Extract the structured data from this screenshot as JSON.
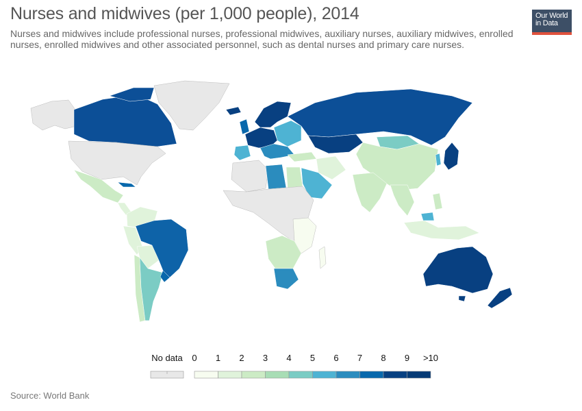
{
  "title": "Nurses and midwives (per 1,000 people), 2014",
  "subtitle": "Nurses and midwives include professional nurses, professional midwives, auxiliary nurses, auxiliary midwives, enrolled nurses, enrolled midwives and other associated personnel, such as dental nurses and primary care nurses.",
  "logo": {
    "line1": "Our World",
    "line2": "in Data"
  },
  "source": "Source: World Bank",
  "legend": {
    "no_data_label": "No data",
    "no_data_color": "#e8e8e8",
    "ticks": [
      "0",
      "1",
      "2",
      "3",
      "4",
      "5",
      "6",
      "7",
      "8",
      "9",
      ">10"
    ],
    "colors": [
      "#f7fcf0",
      "#e0f3db",
      "#ccebc5",
      "#a8ddb5",
      "#7bccc4",
      "#4eb3d3",
      "#2b8cbe",
      "#0868ac",
      "#084081",
      "#063a75"
    ]
  }
}
